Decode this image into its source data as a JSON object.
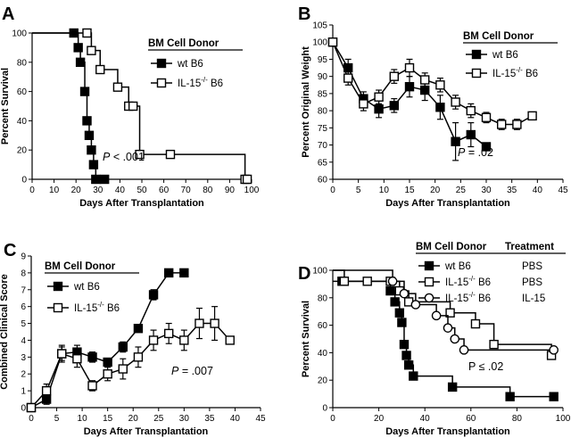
{
  "chart_data": [
    {
      "panel": "A",
      "type": "line",
      "style": "step",
      "xlabel": "Days After Transplantation",
      "ylabel": "Percent Survival",
      "xlim": [
        0,
        100
      ],
      "ylim": [
        0,
        100
      ],
      "xticks": [
        0,
        10,
        20,
        30,
        40,
        50,
        60,
        70,
        80,
        90,
        100
      ],
      "yticks": [
        0,
        20,
        40,
        60,
        80,
        100
      ],
      "legend_title": "BM Cell Donor",
      "legend_placement": "top-right",
      "annotation": {
        "italic": "P",
        "text": " < .001"
      },
      "series": [
        {
          "name": "wt B6",
          "marker": "filled-square",
          "x": [
            0,
            19,
            21,
            22,
            24,
            25,
            26,
            27,
            28,
            29,
            33
          ],
          "y": [
            100,
            100,
            90,
            80,
            60,
            40,
            30,
            20,
            10,
            0,
            0
          ]
        },
        {
          "name": "IL-15",
          "sup": "-/-",
          "name_suffix": " B6",
          "marker": "open-square",
          "x": [
            0,
            25,
            27,
            31,
            39,
            44,
            46,
            49,
            63,
            97,
            98
          ],
          "y": [
            100,
            100,
            88,
            75,
            63,
            50,
            50,
            17,
            17,
            0,
            0
          ]
        }
      ]
    },
    {
      "panel": "B",
      "type": "line",
      "error_bars": true,
      "xlabel": "Days After Transplantation",
      "ylabel": "Percent Original Weight",
      "xlim": [
        0,
        45
      ],
      "ylim": [
        60,
        105
      ],
      "xticks": [
        0,
        5,
        10,
        15,
        20,
        25,
        30,
        35,
        40,
        45
      ],
      "yticks": [
        60,
        65,
        70,
        75,
        80,
        85,
        90,
        95,
        100,
        105
      ],
      "legend_title": "BM Cell Donor",
      "legend_placement": "top-right",
      "annotation": {
        "italic": "P",
        "text": " = .02"
      },
      "series": [
        {
          "name": "wt B6",
          "marker": "filled-square",
          "x": [
            0,
            3,
            6,
            9,
            12,
            15,
            18,
            21,
            24,
            27,
            30
          ],
          "y": [
            100,
            92.5,
            83.5,
            80.5,
            81.5,
            87,
            86,
            81,
            71,
            73,
            69.5
          ],
          "err": [
            0,
            2.5,
            2,
            2.5,
            2,
            3,
            3,
            3.5,
            5.5,
            3.5,
            0
          ]
        },
        {
          "name": "IL-15",
          "sup": "-/-",
          "name_suffix": " B6",
          "marker": "open-square",
          "x": [
            0,
            3,
            6,
            9,
            12,
            15,
            18,
            21,
            24,
            27,
            30,
            33,
            36,
            39
          ],
          "y": [
            100,
            89.5,
            82,
            84,
            90,
            92.5,
            89,
            87.5,
            82.5,
            80,
            78,
            76,
            76,
            78.5
          ],
          "err": [
            0,
            2,
            2,
            2,
            2,
            2.5,
            2,
            2,
            2,
            2,
            1.5,
            1.5,
            1.5,
            0
          ]
        }
      ]
    },
    {
      "panel": "C",
      "type": "line",
      "error_bars": true,
      "xlabel": "Days After Transplantation",
      "ylabel": "Combined Clinical Score",
      "xlim": [
        0,
        45
      ],
      "ylim": [
        0,
        9
      ],
      "xticks": [
        0,
        5,
        10,
        15,
        20,
        25,
        30,
        35,
        40,
        45
      ],
      "yticks": [
        0,
        1,
        2,
        3,
        4,
        5,
        6,
        7,
        8,
        9
      ],
      "legend_title": "BM Cell Donor",
      "legend_placement": "top-left",
      "annotation": {
        "italic": "P",
        "text": " = .007"
      },
      "series": [
        {
          "name": "wt B6",
          "marker": "filled-square",
          "x": [
            0,
            3,
            6,
            9,
            12,
            15,
            18,
            21,
            24,
            27,
            30
          ],
          "y": [
            0,
            0.5,
            3.2,
            3.3,
            3,
            2.7,
            3.6,
            4.7,
            6.7,
            8,
            8
          ],
          "err": [
            0,
            0.3,
            0.4,
            0.4,
            0.3,
            0.2,
            0.3,
            0.2,
            0.3,
            0.1,
            0
          ]
        },
        {
          "name": "IL-15",
          "sup": "-/-",
          "name_suffix": " B6",
          "marker": "open-square",
          "x": [
            0,
            3,
            6,
            9,
            12,
            15,
            18,
            21,
            24,
            27,
            30,
            33,
            36,
            39
          ],
          "y": [
            0,
            1,
            3.2,
            2.9,
            1.3,
            2,
            2.3,
            3,
            4,
            4.4,
            4,
            5,
            5,
            4
          ],
          "err": [
            0,
            0.4,
            0.5,
            0.5,
            0.3,
            0.4,
            0.6,
            0.6,
            0.6,
            0.6,
            0.6,
            0.9,
            1,
            0
          ]
        }
      ]
    },
    {
      "panel": "D",
      "type": "line",
      "style": "step",
      "xlabel": "Days After Transplantation",
      "ylabel": "Percent Survival",
      "xlim": [
        0,
        100
      ],
      "ylim": [
        0,
        100
      ],
      "xticks": [
        0,
        20,
        40,
        60,
        80,
        100
      ],
      "yticks": [
        0,
        20,
        40,
        60,
        80,
        100
      ],
      "legend_title": "BM Cell Donor",
      "legend_title_2": "Treatment",
      "legend_placement": "top-right",
      "annotation": {
        "text": "P ≤ .02"
      },
      "series": [
        {
          "name": "wt B6",
          "treatment": "PBS",
          "marker": "filled-square",
          "x": [
            0,
            4,
            25,
            27,
            29,
            30,
            31,
            32,
            33,
            35,
            52,
            77,
            96
          ],
          "y": [
            92,
            92,
            85,
            77,
            69,
            62,
            46,
            38,
            31,
            23,
            15,
            8,
            8
          ]
        },
        {
          "name": "IL-15",
          "sup": "-/-",
          "name_suffix": " B6",
          "treatment": "PBS",
          "marker": "open-square",
          "x": [
            0,
            5,
            15,
            25,
            29,
            33,
            51,
            62,
            70,
            95
          ],
          "y": [
            100,
            92,
            92,
            92,
            85,
            77,
            69,
            61,
            46,
            38
          ]
        },
        {
          "name": "IL-15",
          "sup": "-/-",
          "name_suffix": " B6",
          "treatment": "IL-15",
          "marker": "open-circle",
          "x": [
            0,
            26,
            31,
            36,
            45,
            50,
            53,
            57,
            96
          ],
          "y": [
            100,
            92,
            83,
            75,
            67,
            58,
            50,
            42,
            42
          ]
        }
      ]
    }
  ]
}
